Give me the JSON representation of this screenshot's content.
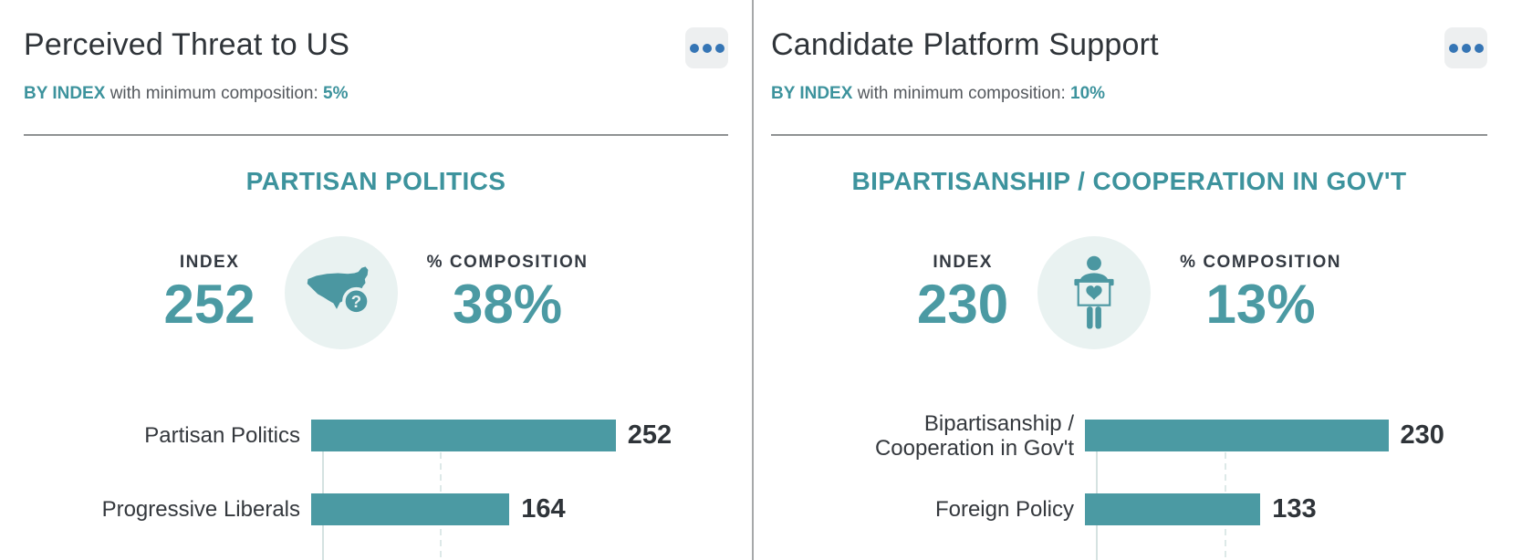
{
  "colors": {
    "accent_teal": "#3d939d",
    "bar_teal": "#4b9aa3",
    "stat_number_teal": "#4b9aa3",
    "menu_dot_blue": "#3575b5",
    "menu_btn_bg": "#edeff0",
    "title_dark": "#2f3439",
    "subtitle_gray": "#54585d",
    "divider_gray": "#a6a8a9",
    "icon_circle_bg": "#e9f2f1",
    "gridline": "#dde9e8"
  },
  "cards": [
    {
      "title": "Perceived Threat to US",
      "subtitle": {
        "by": "BY INDEX",
        "mid": "with minimum composition:",
        "value": "5%"
      },
      "menu_icon": "ellipsis-icon",
      "stats": {
        "index_label": "INDEX",
        "index_value": "252",
        "comp_label": "% COMPOSITION",
        "comp_value": "38%"
      },
      "icon": "usa-map-question-icon"
    },
    {
      "title": "Candidate Platform Support",
      "subtitle": {
        "by": "BY INDEX",
        "mid": "with minimum composition:",
        "value": "10%"
      },
      "menu_icon": "ellipsis-icon",
      "stats": {
        "index_label": "INDEX",
        "index_value": "230",
        "comp_label": "% COMPOSITION",
        "comp_value": "13%"
      },
      "icon": "person-holding-sign-icon"
    }
  ],
  "chart_data": [
    {
      "type": "bar",
      "orientation": "horizontal",
      "title": "PARTISAN POLITICS",
      "categories": [
        "Partisan Politics",
        "Progressive Liberals"
      ],
      "category_lines": [
        [
          "Partisan Politics"
        ],
        [
          "Progressive Liberals"
        ]
      ],
      "values": [
        252,
        164
      ],
      "value_labels": [
        "252",
        "164"
      ],
      "xlim": [
        0,
        345
      ],
      "gridlines_x": [
        100
      ],
      "bar_color": "#4b9aa3",
      "legend": "none"
    },
    {
      "type": "bar",
      "orientation": "horizontal",
      "title": "BIPARTISANSHIP / COOPERATION IN GOV'T",
      "categories": [
        "Bipartisanship / Cooperation in Gov't",
        "Foreign Policy"
      ],
      "category_lines": [
        [
          "Bipartisanship /",
          "Cooperation in Gov't"
        ],
        [
          "Foreign Policy"
        ]
      ],
      "values": [
        230,
        133
      ],
      "value_labels": [
        "230",
        "133"
      ],
      "xlim": [
        0,
        305
      ],
      "gridlines_x": [
        100
      ],
      "bar_color": "#4b9aa3",
      "legend": "none"
    }
  ]
}
